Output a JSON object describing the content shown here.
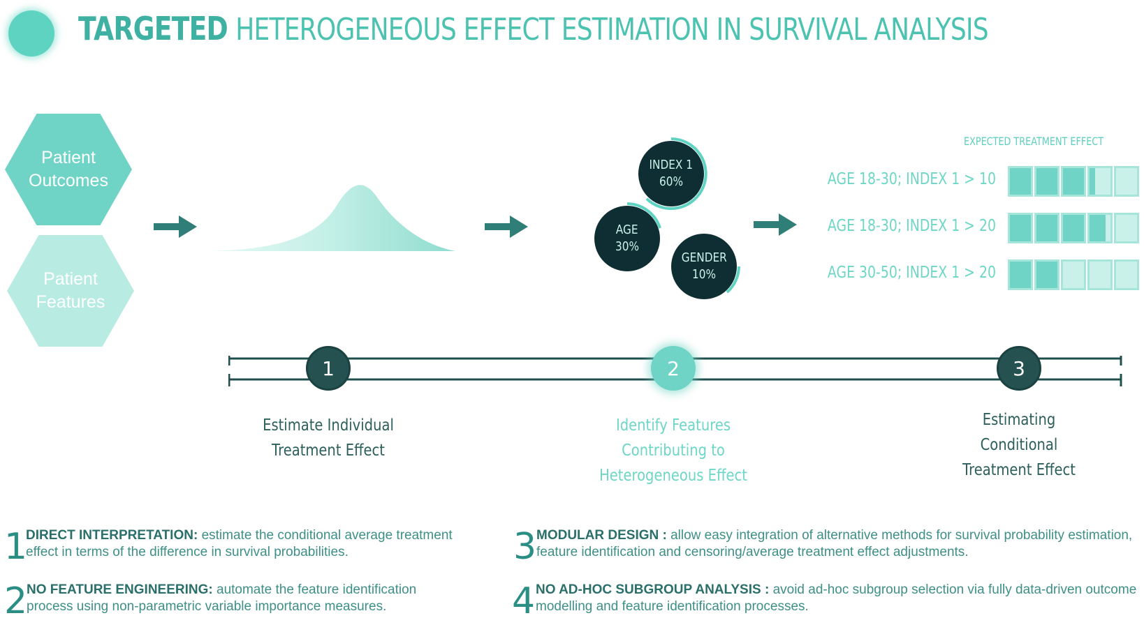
{
  "title": {
    "strong": "Targeted",
    "rest": "Heterogeneous Effect Estimation in Survival Analysis"
  },
  "inputs": {
    "outcomes": [
      "Patient",
      "Outcomes"
    ],
    "features": [
      "Patient",
      "Features"
    ]
  },
  "features": [
    {
      "name": "INDEX 1",
      "value": "60%"
    },
    {
      "name": "AGE",
      "value": "30%"
    },
    {
      "name": "GENDER",
      "value": "10%"
    }
  ],
  "expected_effect": {
    "title": "EXPECTED TREATMENT EFFECT",
    "rows": [
      {
        "label": "AGE 18-30;  INDEX 1 > 10",
        "level": 0.65
      },
      {
        "label": "AGE 18-30;  INDEX 1 > 20",
        "level": 0.75
      },
      {
        "label": "AGE 30-50;  INDEX 1 > 20",
        "level": 0.4
      }
    ]
  },
  "stages": [
    {
      "number": "1",
      "lines": [
        "Estimate Individual",
        "Treatment Effect"
      ]
    },
    {
      "number": "2",
      "lines": [
        "Identify Features",
        "Contributing to",
        "Heterogeneous Effect"
      ]
    },
    {
      "number": "3",
      "lines": [
        "Estimating",
        "Conditional",
        "Treatment Effect"
      ]
    }
  ],
  "principles": [
    {
      "number": "1",
      "heading": "DIRECT INTERPRETATION:",
      "line1": "  estimate the conditional average treatment",
      "line2": "effect in terms of the difference in survival probabilities."
    },
    {
      "number": "2",
      "heading": "NO FEATURE ENGINEERING:",
      "line1": " automate the feature identification",
      "line2": "process using non-parametric variable importance measures."
    },
    {
      "number": "3",
      "heading": "MODULAR DESIGN :",
      "line1": " allow easy integration of alternative methods for survival probability estimation,",
      "line2": "feature identification and censoring/average treatment effect adjustments."
    },
    {
      "number": "4",
      "heading": "NO AD-HOC SUBGROUP ANALYSIS :",
      "line1": " avoid ad-hoc subgroup selection via fully data-driven outcome",
      "line2": "modelling and feature identification processes."
    }
  ],
  "colors": {
    "teal": "#6fd4c5",
    "dark": "#1f4f4d",
    "pale": "#b8ece3",
    "bubble": "#0f2e33"
  }
}
